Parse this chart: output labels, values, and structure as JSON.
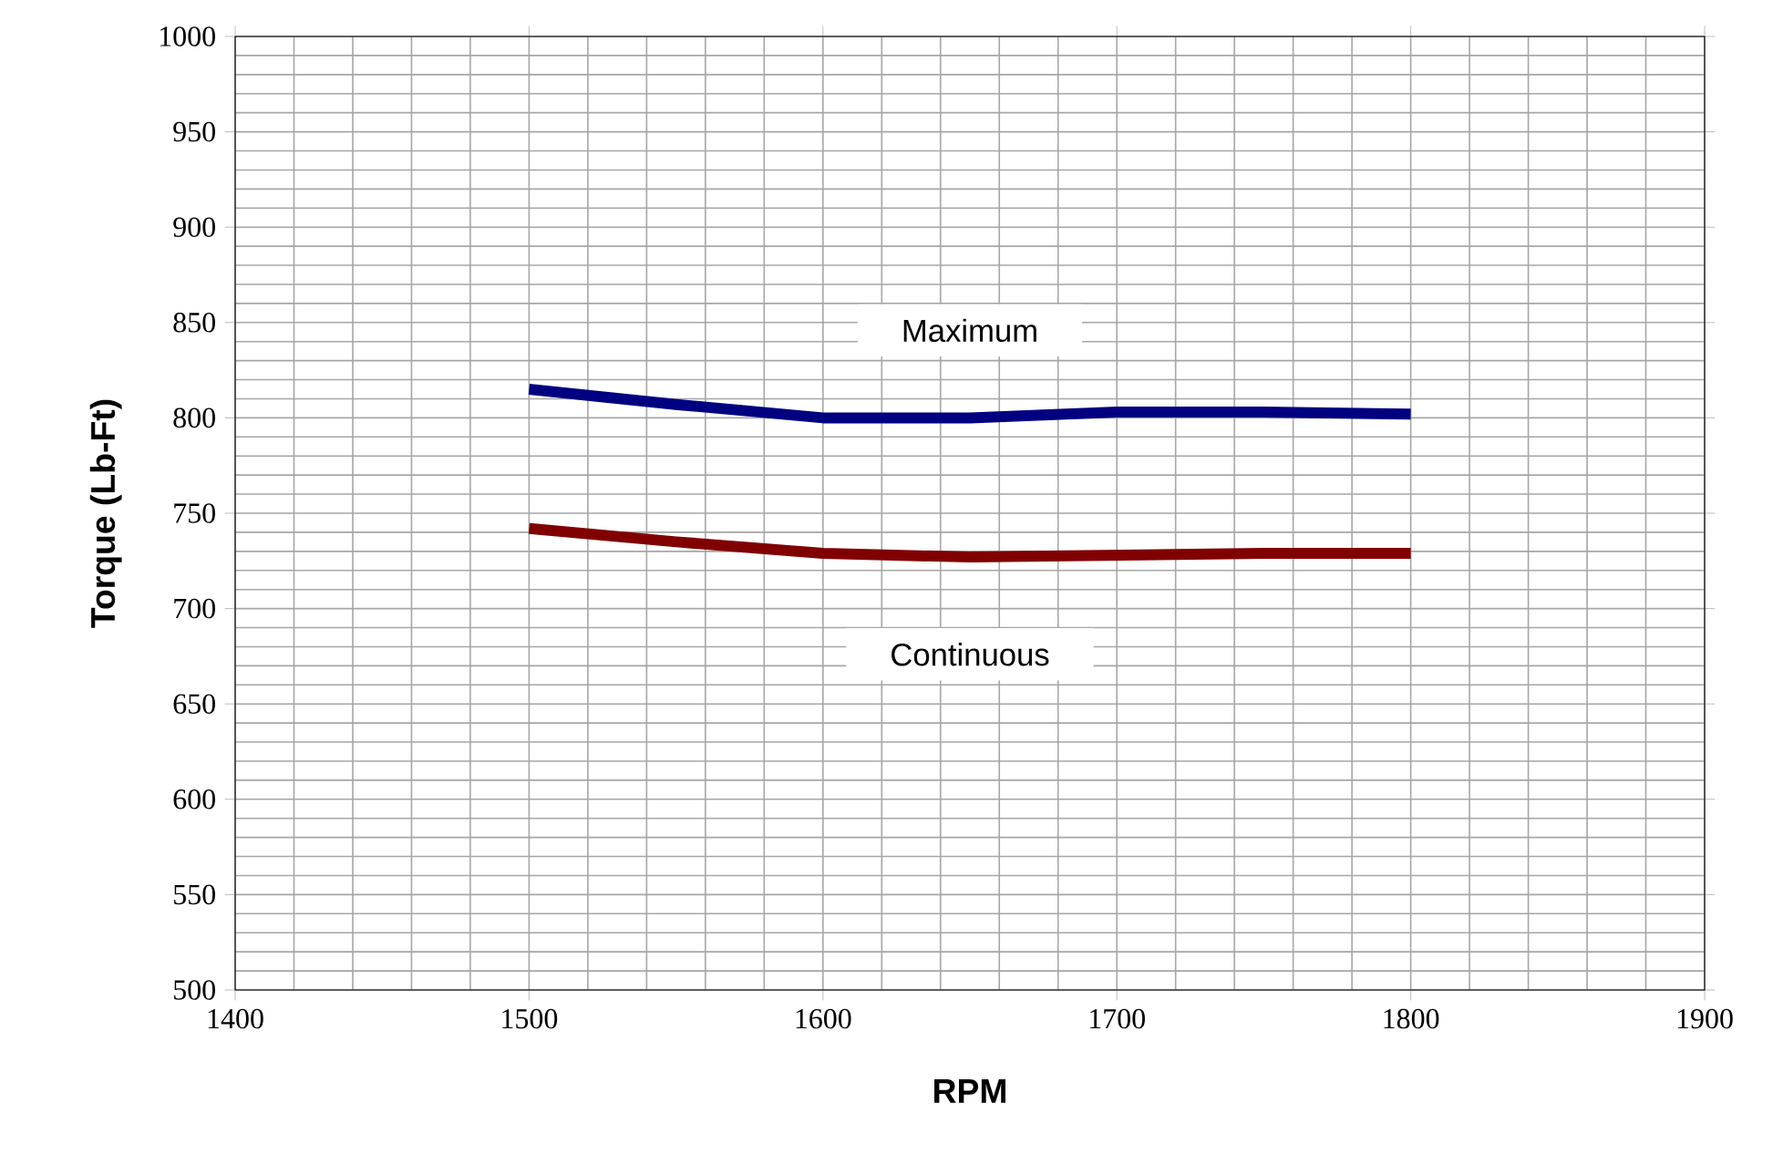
{
  "chart_data": {
    "type": "line",
    "xlabel": "RPM",
    "ylabel": "Torque (Lb-Ft)",
    "x": [
      1500,
      1550,
      1600,
      1650,
      1700,
      1750,
      1800
    ],
    "series": [
      {
        "name": "Maximum",
        "color": "#000080",
        "values": [
          815,
          807,
          800,
          800,
          803,
          803,
          802
        ]
      },
      {
        "name": "Continuous",
        "color": "#800000",
        "values": [
          742,
          735,
          729,
          727,
          728,
          729,
          729
        ]
      }
    ],
    "xlim": [
      1400,
      1900
    ],
    "xticks": [
      1400,
      1500,
      1600,
      1700,
      1800,
      1900
    ],
    "ylim": [
      500,
      1000
    ],
    "yticks": [
      500,
      550,
      600,
      650,
      700,
      750,
      800,
      850,
      900,
      950,
      1000
    ],
    "grid": true,
    "marker": "none",
    "line_style": "solid"
  }
}
